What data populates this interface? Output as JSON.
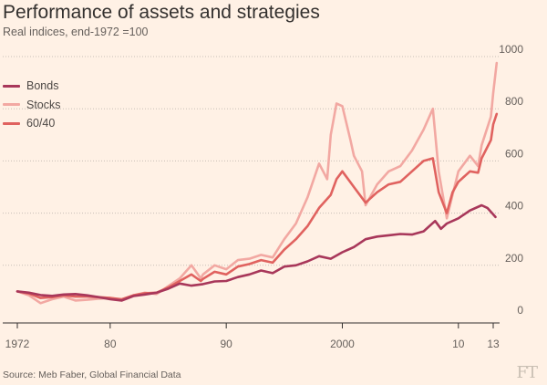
{
  "header": {
    "title": "Performance of assets and strategies",
    "subtitle": "Real indices, end-1972 =100"
  },
  "source": "Source: Meb Faber, Global Financial Data",
  "logo_text": "FT",
  "chart_data": {
    "type": "line",
    "title": "Performance of assets and strategies",
    "subtitle": "Real indices, end-1972 =100",
    "xlabel": "",
    "ylabel": "",
    "xlim": [
      1972,
      2014
    ],
    "ylim": [
      0,
      1000
    ],
    "y_ticks": [
      0,
      200,
      400,
      600,
      800,
      1000
    ],
    "x_ticks": [
      {
        "value": 1972,
        "label": "1972"
      },
      {
        "value": 1980,
        "label": "80"
      },
      {
        "value": 1990,
        "label": "90"
      },
      {
        "value": 2000,
        "label": "2000"
      },
      {
        "value": 2010,
        "label": "10"
      },
      {
        "value": 2013,
        "label": "13"
      }
    ],
    "grid": "horizontal-dotted",
    "y_axis_position": "right",
    "legend_position": "top-left",
    "series": [
      {
        "name": "Bonds",
        "color": "#a8375a",
        "points": [
          [
            1972,
            100
          ],
          [
            1973,
            95
          ],
          [
            1974,
            86
          ],
          [
            1975,
            83
          ],
          [
            1976,
            88
          ],
          [
            1977,
            90
          ],
          [
            1978,
            85
          ],
          [
            1979,
            78
          ],
          [
            1980,
            70
          ],
          [
            1981,
            65
          ],
          [
            1982,
            82
          ],
          [
            1983,
            88
          ],
          [
            1984,
            95
          ],
          [
            1985,
            110
          ],
          [
            1986,
            130
          ],
          [
            1987,
            122
          ],
          [
            1988,
            128
          ],
          [
            1989,
            138
          ],
          [
            1990,
            140
          ],
          [
            1991,
            155
          ],
          [
            1992,
            165
          ],
          [
            1993,
            180
          ],
          [
            1994,
            170
          ],
          [
            1995,
            195
          ],
          [
            1996,
            200
          ],
          [
            1997,
            215
          ],
          [
            1998,
            235
          ],
          [
            1999,
            225
          ],
          [
            2000,
            250
          ],
          [
            2001,
            270
          ],
          [
            2002,
            300
          ],
          [
            2003,
            310
          ],
          [
            2004,
            315
          ],
          [
            2005,
            320
          ],
          [
            2006,
            318
          ],
          [
            2007,
            330
          ],
          [
            2008,
            370
          ],
          [
            2008.5,
            340
          ],
          [
            2009,
            360
          ],
          [
            2010,
            380
          ],
          [
            2011,
            410
          ],
          [
            2012,
            430
          ],
          [
            2012.5,
            420
          ],
          [
            2013,
            395
          ],
          [
            2013.2,
            385
          ]
        ]
      },
      {
        "name": "Stocks",
        "color": "#f2a8a2",
        "points": [
          [
            1972,
            100
          ],
          [
            1973,
            85
          ],
          [
            1974,
            55
          ],
          [
            1975,
            70
          ],
          [
            1976,
            80
          ],
          [
            1977,
            65
          ],
          [
            1978,
            68
          ],
          [
            1979,
            72
          ],
          [
            1980,
            75
          ],
          [
            1981,
            68
          ],
          [
            1982,
            85
          ],
          [
            1983,
            95
          ],
          [
            1984,
            90
          ],
          [
            1985,
            120
          ],
          [
            1986,
            150
          ],
          [
            1987,
            200
          ],
          [
            1987.8,
            150
          ],
          [
            1988,
            165
          ],
          [
            1989,
            200
          ],
          [
            1990,
            185
          ],
          [
            1991,
            220
          ],
          [
            1992,
            225
          ],
          [
            1993,
            240
          ],
          [
            1994,
            230
          ],
          [
            1995,
            300
          ],
          [
            1996,
            360
          ],
          [
            1997,
            460
          ],
          [
            1998,
            590
          ],
          [
            1998.7,
            530
          ],
          [
            1999,
            700
          ],
          [
            1999.5,
            820
          ],
          [
            2000,
            810
          ],
          [
            2000.7,
            680
          ],
          [
            2001,
            620
          ],
          [
            2001.7,
            560
          ],
          [
            2002,
            430
          ],
          [
            2003,
            510
          ],
          [
            2004,
            560
          ],
          [
            2005,
            580
          ],
          [
            2006,
            640
          ],
          [
            2007,
            720
          ],
          [
            2007.8,
            800
          ],
          [
            2008.3,
            560
          ],
          [
            2009,
            380
          ],
          [
            2009.5,
            470
          ],
          [
            2010,
            560
          ],
          [
            2011,
            620
          ],
          [
            2011.7,
            580
          ],
          [
            2012,
            660
          ],
          [
            2012.8,
            770
          ],
          [
            2013,
            860
          ],
          [
            2013.3,
            975
          ]
        ]
      },
      {
        "name": "60/40",
        "color": "#e0625f",
        "points": [
          [
            1972,
            100
          ],
          [
            1973,
            92
          ],
          [
            1974,
            75
          ],
          [
            1975,
            78
          ],
          [
            1976,
            85
          ],
          [
            1977,
            80
          ],
          [
            1978,
            80
          ],
          [
            1979,
            78
          ],
          [
            1980,
            75
          ],
          [
            1981,
            70
          ],
          [
            1982,
            85
          ],
          [
            1983,
            93
          ],
          [
            1984,
            95
          ],
          [
            1985,
            115
          ],
          [
            1986,
            140
          ],
          [
            1987,
            165
          ],
          [
            1987.8,
            140
          ],
          [
            1988,
            148
          ],
          [
            1989,
            175
          ],
          [
            1990,
            165
          ],
          [
            1991,
            195
          ],
          [
            1992,
            205
          ],
          [
            1993,
            220
          ],
          [
            1994,
            210
          ],
          [
            1995,
            260
          ],
          [
            1996,
            300
          ],
          [
            1997,
            350
          ],
          [
            1998,
            420
          ],
          [
            1999,
            470
          ],
          [
            1999.5,
            530
          ],
          [
            2000,
            560
          ],
          [
            2001,
            500
          ],
          [
            2002,
            440
          ],
          [
            2003,
            480
          ],
          [
            2004,
            510
          ],
          [
            2005,
            520
          ],
          [
            2006,
            560
          ],
          [
            2007,
            600
          ],
          [
            2007.8,
            610
          ],
          [
            2008.3,
            480
          ],
          [
            2009,
            400
          ],
          [
            2009.5,
            480
          ],
          [
            2010,
            520
          ],
          [
            2011,
            560
          ],
          [
            2011.7,
            555
          ],
          [
            2012,
            610
          ],
          [
            2012.8,
            680
          ],
          [
            2013,
            740
          ],
          [
            2013.3,
            780
          ]
        ]
      }
    ]
  }
}
